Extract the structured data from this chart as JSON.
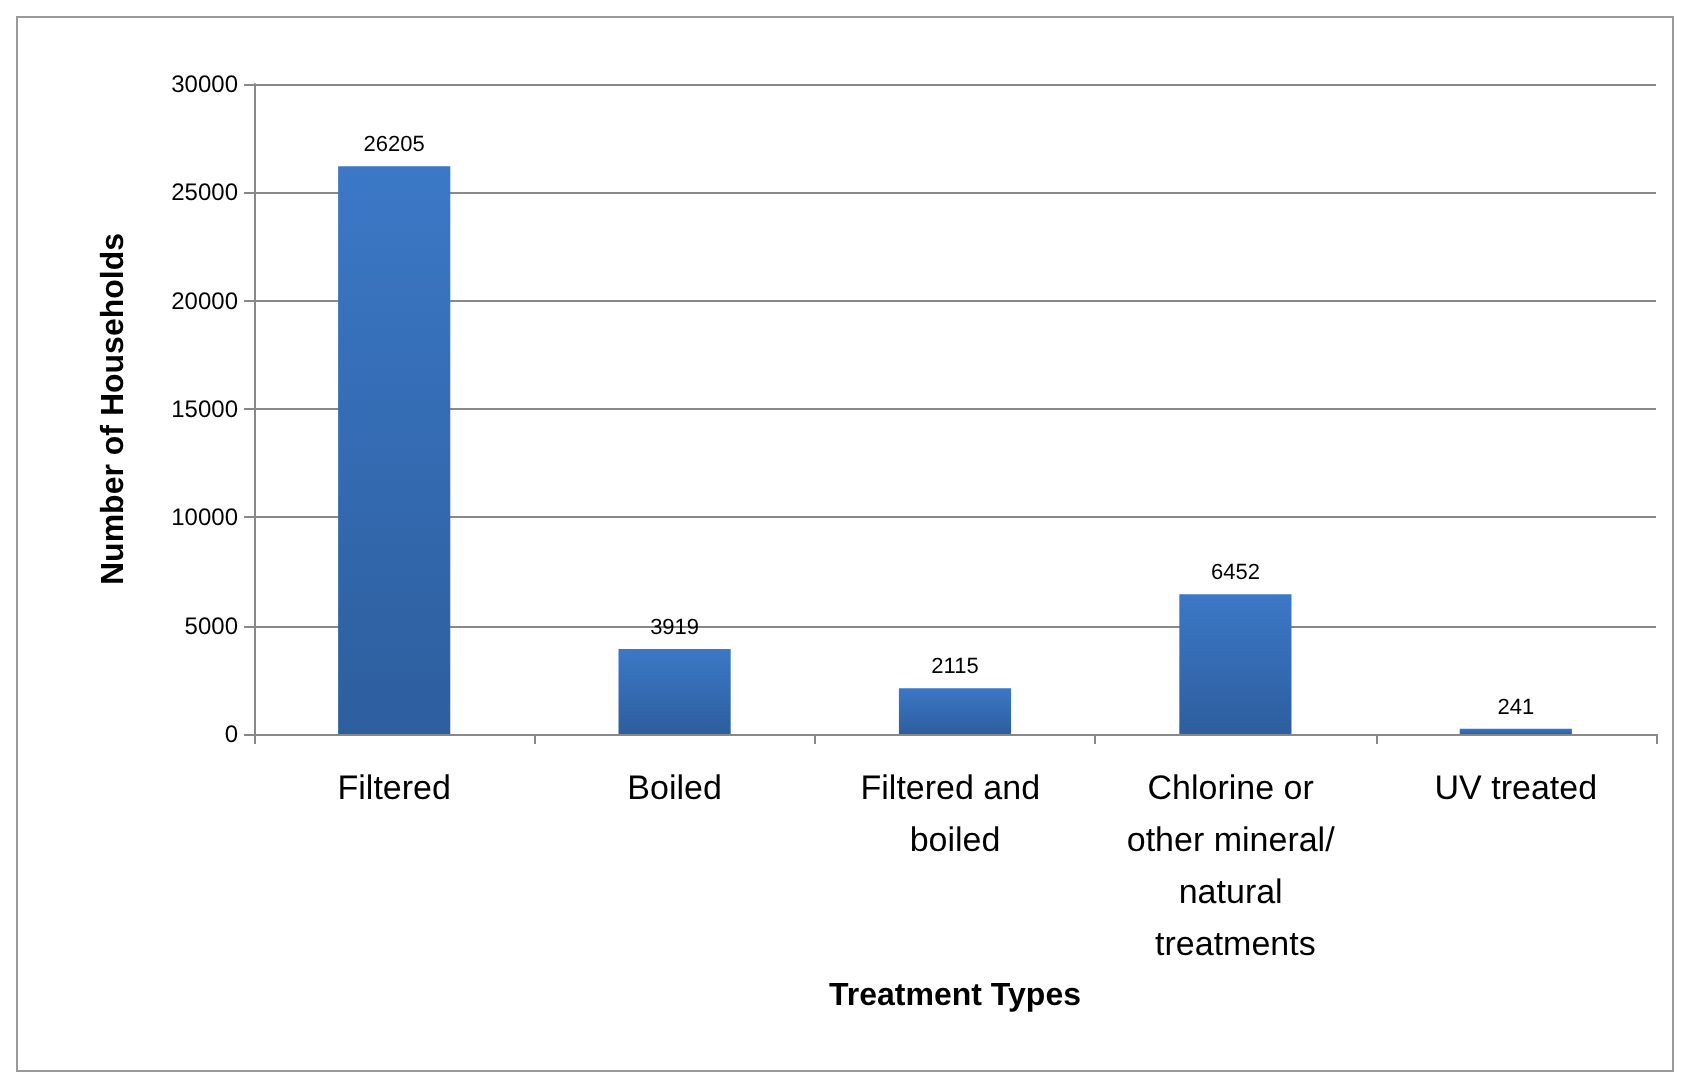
{
  "chart_data": {
    "type": "bar",
    "xlabel": "Treatment Types",
    "ylabel": "Number of Households",
    "categories": [
      "Filtered",
      "Boiled",
      "Filtered and boiled",
      "Chlorine or other mineral/ natural treatments",
      "UV treated"
    ],
    "values": [
      26205,
      3919,
      2115,
      6452,
      241
    ],
    "color": "#3b78c6",
    "ylim": [
      0,
      30000
    ],
    "yticks": [
      0,
      5000,
      10000,
      15000,
      20000,
      25000,
      30000
    ],
    "grid": "y",
    "data_labels": true
  }
}
